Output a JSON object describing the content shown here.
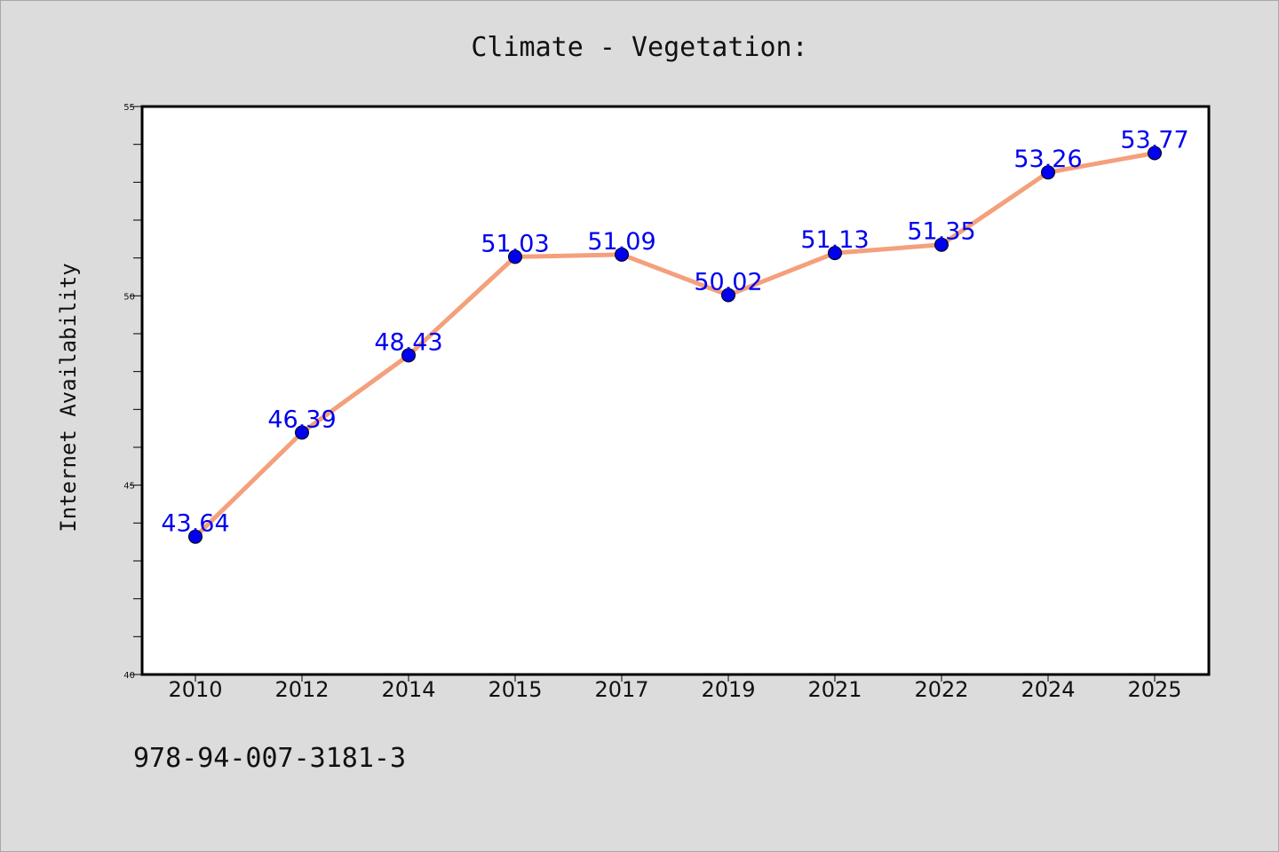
{
  "chart_data": {
    "type": "line",
    "title": "Climate - Vegetation:",
    "xlabel": "",
    "ylabel": "Internet Availability",
    "categories": [
      "2010",
      "2012",
      "2014",
      "2015",
      "2017",
      "2019",
      "2021",
      "2022",
      "2024",
      "2025"
    ],
    "series": [
      {
        "values": [
          43.64,
          46.39,
          48.43,
          51.03,
          51.09,
          50.02,
          51.13,
          51.35,
          53.26,
          53.77
        ],
        "labels": [
          "43.64",
          "46.39",
          "48.43",
          "51.03",
          "51.09",
          "50.02",
          "51.13",
          "51.35",
          "53.26",
          "53.77"
        ]
      }
    ],
    "ylim": [
      40,
      55
    ],
    "yticks": [
      "40",
      "45",
      "50",
      "55"
    ],
    "ytick_values": [
      40,
      45,
      50,
      55
    ],
    "minor_tick_step": 1,
    "grid": false,
    "legend": "none",
    "colors": {
      "line": "#f4a07c",
      "marker": "#0000ee",
      "data_label": "#0000ee",
      "background": "#dcdcdc",
      "plot_area": "#ffffff"
    }
  },
  "footer": {
    "text": "978-94-007-3181-3"
  }
}
